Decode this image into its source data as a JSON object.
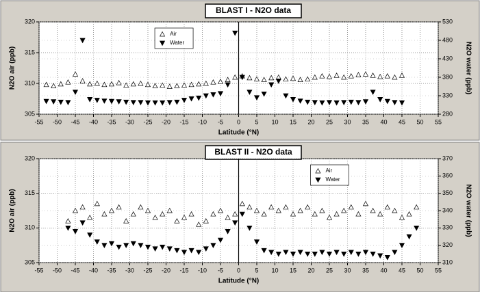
{
  "chart_data": [
    {
      "type": "scatter",
      "title": "BLAST I - N2O data",
      "xlabel": "Latitude  (°N)",
      "ylabel": "N2O air  (ppb)",
      "y2label": "N2O water  (ppb)",
      "x": [
        -53,
        -51,
        -49,
        -47,
        -45,
        -43,
        -41,
        -39,
        -37,
        -35,
        -33,
        -31,
        -29,
        -27,
        -25,
        -23,
        -21,
        -19,
        -17,
        -15,
        -13,
        -11,
        -9,
        -7,
        -5,
        -3,
        -1,
        1,
        3,
        5,
        7,
        9,
        11,
        13,
        15,
        17,
        19,
        21,
        23,
        25,
        27,
        29,
        31,
        33,
        35,
        37,
        39,
        41,
        43,
        45
      ],
      "xlim": [
        -55,
        55
      ],
      "xticks": [
        -55,
        -50,
        -45,
        -40,
        -35,
        -30,
        -25,
        -20,
        -15,
        -10,
        -5,
        0,
        5,
        10,
        15,
        20,
        25,
        30,
        35,
        40,
        45,
        50,
        55
      ],
      "ylim": [
        305,
        320
      ],
      "yticks": [
        305,
        310,
        315,
        320
      ],
      "y2lim": [
        280,
        530
      ],
      "y2ticks": [
        280,
        330,
        380,
        430,
        480,
        530
      ],
      "grid": true,
      "reference_line_x": 0,
      "legend": "upper left",
      "series": [
        {
          "name": "Air",
          "color": "#000000",
          "marker": "triangle-up",
          "filled": false,
          "values": [
            309.8,
            309.6,
            309.9,
            310.2,
            311.5,
            310.4,
            309.9,
            310.0,
            309.8,
            309.9,
            310.1,
            309.7,
            309.9,
            310.0,
            309.8,
            309.6,
            309.7,
            309.5,
            309.6,
            309.7,
            309.8,
            309.9,
            310.0,
            310.2,
            310.3,
            310.6,
            311.0,
            311.2,
            310.9,
            310.7,
            310.6,
            310.9,
            311.0,
            310.7,
            310.8,
            310.6,
            310.7,
            311.0,
            311.2,
            311.1,
            311.3,
            311.0,
            311.2,
            311.4,
            311.5,
            311.3,
            311.1,
            311.2,
            311.0,
            311.3
          ]
        },
        {
          "name": "Water",
          "color": "#000000",
          "marker": "triangle-down",
          "filled": true,
          "axis": "y2",
          "values": [
            315,
            314,
            313,
            312,
            340,
            480,
            320,
            318,
            316,
            315,
            314,
            313,
            312,
            312,
            311,
            311,
            311,
            312,
            313,
            318,
            322,
            324,
            330,
            333,
            336,
            360,
            500,
            380,
            340,
            325,
            335,
            360,
            370,
            330,
            320,
            316,
            313,
            312,
            311,
            312,
            311,
            312,
            313,
            312,
            314,
            340,
            320,
            315,
            312,
            311
          ]
        }
      ]
    },
    {
      "type": "scatter",
      "title": "BLAST II - N2O data",
      "xlabel": "Latitude  (°N)",
      "ylabel": "N2O air  (ppb)",
      "y2label": "N2O water  (ppb)",
      "x": [
        -47,
        -45,
        -43,
        -41,
        -39,
        -37,
        -35,
        -33,
        -31,
        -29,
        -27,
        -25,
        -23,
        -21,
        -19,
        -17,
        -15,
        -13,
        -11,
        -9,
        -7,
        -5,
        -3,
        -1,
        1,
        3,
        5,
        7,
        9,
        11,
        13,
        15,
        17,
        19,
        21,
        23,
        25,
        27,
        29,
        31,
        33,
        35,
        37,
        39,
        41,
        43,
        45,
        47,
        49
      ],
      "xlim": [
        -55,
        55
      ],
      "xticks": [
        -55,
        -50,
        -45,
        -40,
        -35,
        -30,
        -25,
        -20,
        -15,
        -10,
        -5,
        0,
        5,
        10,
        15,
        20,
        25,
        30,
        35,
        40,
        45,
        50,
        55
      ],
      "ylim": [
        305,
        320
      ],
      "yticks": [
        305,
        310,
        315,
        320
      ],
      "y2lim": [
        310,
        370
      ],
      "y2ticks": [
        310,
        320,
        330,
        340,
        350,
        360,
        370
      ],
      "grid": true,
      "reference_line_x": 0,
      "legend": "upper right",
      "series": [
        {
          "name": "Air",
          "color": "#000000",
          "marker": "triangle-up",
          "filled": false,
          "values": [
            311,
            312.5,
            313,
            311.5,
            313.5,
            312,
            312.5,
            313,
            311,
            312,
            313,
            312.5,
            311.5,
            312,
            312.5,
            311,
            311.5,
            312,
            310.5,
            311,
            312,
            312.5,
            311.5,
            312,
            313.5,
            313,
            312.5,
            312,
            313,
            312.5,
            313,
            312,
            312.5,
            313,
            312,
            312.5,
            311.5,
            312,
            312.5,
            313,
            312,
            313.5,
            312.5,
            312,
            313,
            312.5,
            311.5,
            312,
            313
          ]
        },
        {
          "name": "Water",
          "color": "#000000",
          "marker": "triangle-down",
          "filled": true,
          "axis": "y2",
          "values": [
            330,
            328,
            333,
            326,
            322,
            320,
            321,
            319,
            320,
            321,
            320,
            319,
            318,
            319,
            318,
            317,
            316,
            317,
            316,
            318,
            320,
            323,
            328,
            333,
            338,
            330,
            322,
            317,
            316,
            315,
            316,
            315,
            316,
            315,
            315,
            316,
            315,
            316,
            315,
            316,
            315,
            316,
            315,
            314,
            313,
            316,
            320,
            325,
            330
          ]
        }
      ]
    }
  ]
}
